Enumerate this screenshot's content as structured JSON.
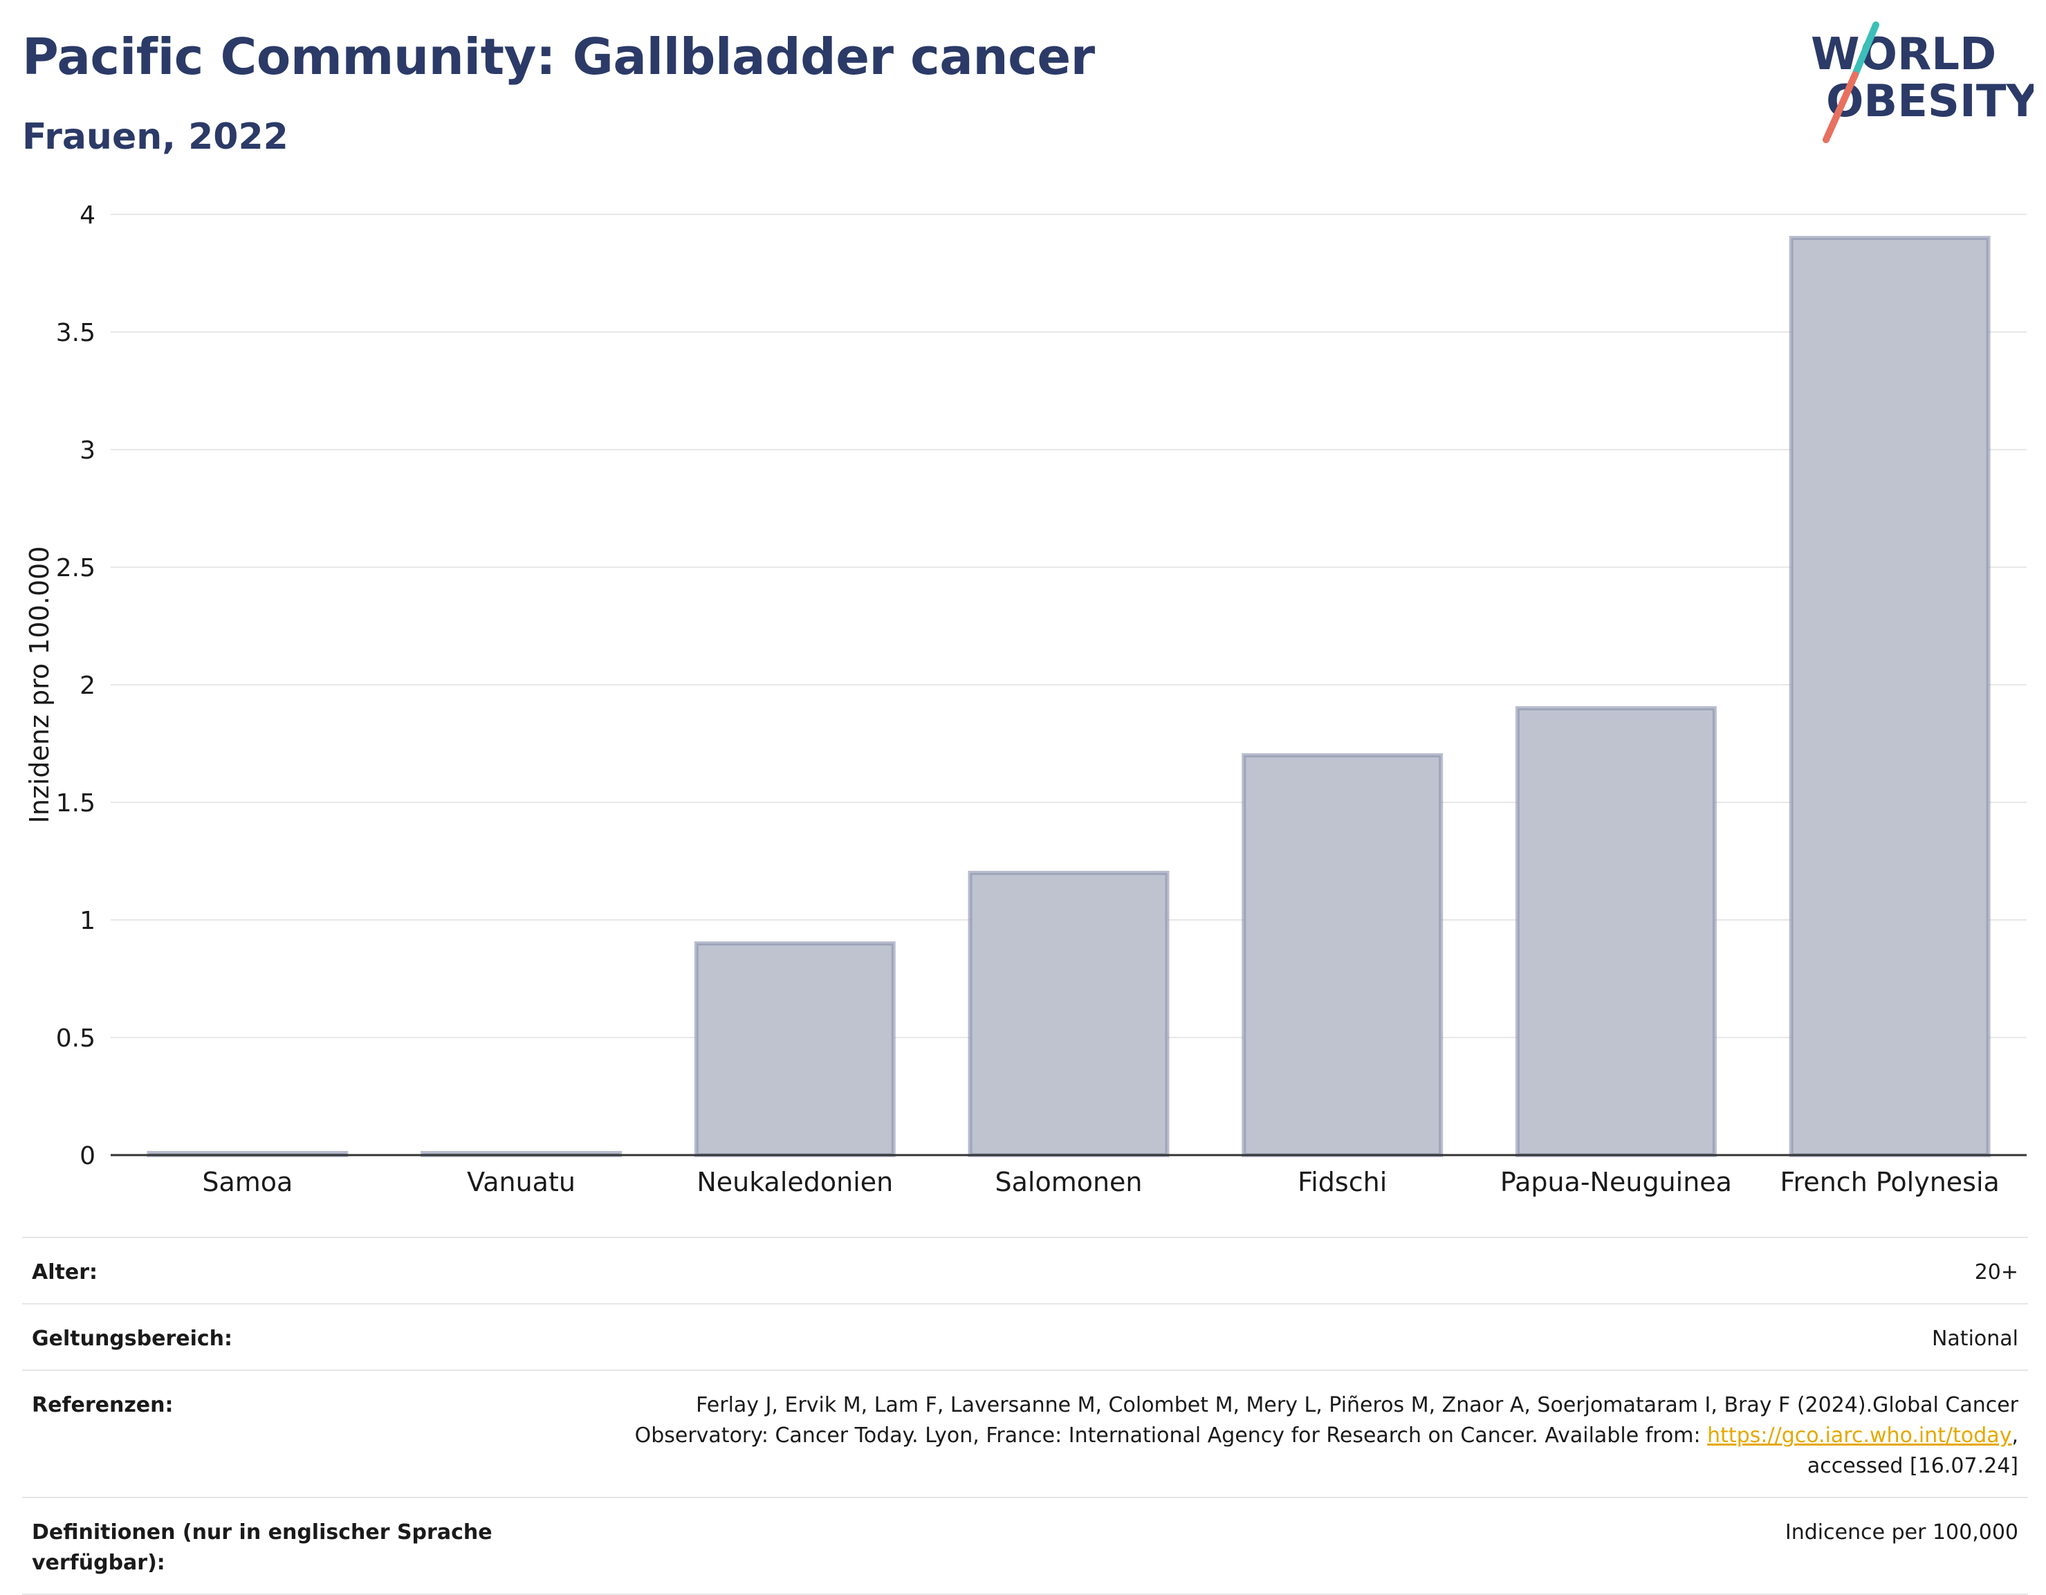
{
  "header": {
    "title": "Pacific Community: Gallbladder cancer",
    "subtitle": "Frauen, 2022"
  },
  "logo": {
    "line1": "WORLD",
    "line2": "OBESITY",
    "text_color": "#2b3a67",
    "slash_top_color": "#3bbfb8",
    "slash_bottom_color": "#e8705f"
  },
  "chart_data": {
    "type": "bar",
    "categories": [
      "Samoa",
      "Vanuatu",
      "Neukaledonien",
      "Salomonen",
      "Fidschi",
      "Papua-Neuguinea",
      "French Polynesia"
    ],
    "values": [
      0,
      0,
      0.9,
      1.2,
      1.7,
      1.9,
      3.9
    ],
    "ylabel": "Inzidenz pro 100.000",
    "xlabel": "",
    "ylim": [
      0,
      4
    ],
    "yticks": [
      0,
      0.5,
      1,
      1.5,
      2,
      2.5,
      3,
      3.5,
      4
    ],
    "ytick_labels": [
      "0",
      "0.5",
      "1",
      "1.5",
      "2",
      "2.5",
      "3",
      "3.5",
      "4"
    ],
    "grid": true,
    "bar_fill": "#bfc3d0",
    "bar_stroke": "#8a91ab"
  },
  "info": {
    "age_label": "Alter:",
    "age_value": "20+",
    "scope_label": "Geltungsbereich:",
    "scope_value": "National",
    "refs_label": "Referenzen:",
    "refs_line1": "Ferlay J, Ervik M, Lam F, Laversanne M, Colombet M, Mery L, Piñeros M, Znaor A, Soerjomataram I, Bray F (2024).Global Cancer",
    "refs_line2_pre": "Observatory: Cancer Today. Lyon, France: International Agency for Research on Cancer. Available from: ",
    "refs_link": "https://gco.iarc.who.int/today",
    "refs_line2_post": ",",
    "refs_line3": "accessed [16.07.24]",
    "defs_label": "Definitionen (nur in englischer Sprache verfügbar):",
    "defs_value": "Indicence per 100,000"
  }
}
